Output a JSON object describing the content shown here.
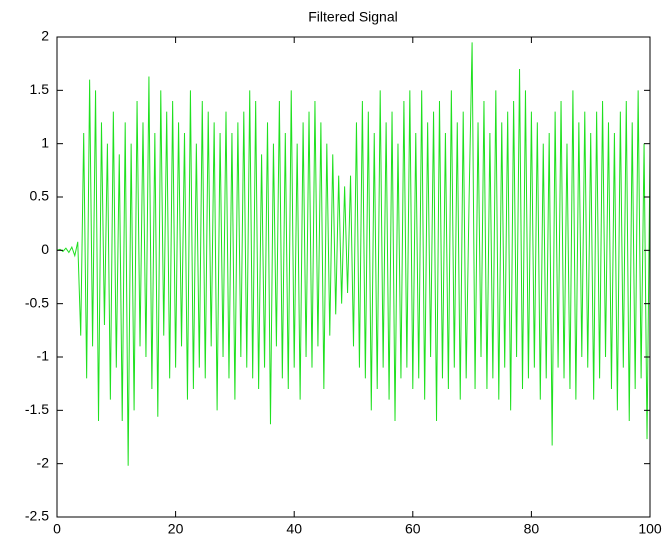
{
  "chart_data": {
    "type": "line",
    "title": "Filtered Signal",
    "color": "#1fe01f",
    "x": [
      0,
      0.5,
      1,
      1.5,
      2,
      2.5,
      3,
      3.5,
      4,
      4.5,
      5,
      5.5,
      6,
      6.5,
      7,
      7.5,
      8,
      8.5,
      9,
      9.5,
      10,
      10.5,
      11,
      11.5,
      12,
      12.5,
      13,
      13.5,
      14,
      14.5,
      15,
      15.5,
      16,
      16.5,
      17,
      17.5,
      18,
      18.5,
      19,
      19.5,
      20,
      20.5,
      21,
      21.5,
      22,
      22.5,
      23,
      23.5,
      24,
      24.5,
      25,
      25.5,
      26,
      26.5,
      27,
      27.5,
      28,
      28.5,
      29,
      29.5,
      30,
      30.5,
      31,
      31.5,
      32,
      32.5,
      33,
      33.5,
      34,
      34.5,
      35,
      35.5,
      36,
      36.5,
      37,
      37.5,
      38,
      38.5,
      39,
      39.5,
      40,
      40.5,
      41,
      41.5,
      42,
      42.5,
      43,
      43.5,
      44,
      44.5,
      45,
      45.5,
      46,
      46.5,
      47,
      47.5,
      48,
      48.5,
      49,
      49.5,
      50,
      50.5,
      51,
      51.5,
      52,
      52.5,
      53,
      53.5,
      54,
      54.5,
      55,
      55.5,
      56,
      56.5,
      57,
      57.5,
      58,
      58.5,
      59,
      59.5,
      60,
      60.5,
      61,
      61.5,
      62,
      62.5,
      63,
      63.5,
      64,
      64.5,
      65,
      65.5,
      66,
      66.5,
      67,
      67.5,
      68,
      68.5,
      69,
      69.5,
      70,
      70.5,
      71,
      71.5,
      72,
      72.5,
      73,
      73.5,
      74,
      74.5,
      75,
      75.5,
      76,
      76.5,
      77,
      77.5,
      78,
      78.5,
      79,
      79.5,
      80,
      80.5,
      81,
      81.5,
      82,
      82.5,
      83,
      83.5,
      84,
      84.5,
      85,
      85.5,
      86,
      86.5,
      87,
      87.5,
      88,
      88.5,
      89,
      89.5,
      90,
      90.5,
      91,
      91.5,
      92,
      92.5,
      93,
      93.5,
      94,
      94.5,
      95,
      95.5,
      96,
      96.5,
      97,
      97.5,
      98,
      98.5,
      99,
      99.5,
      100
    ],
    "values": [
      0,
      0.01,
      -0.01,
      0.02,
      -0.02,
      0.03,
      -0.05,
      0.08,
      -0.8,
      1.1,
      -1.2,
      1.6,
      -0.9,
      1.5,
      -1.6,
      1.2,
      -0.7,
      1.0,
      -1.4,
      1.3,
      -1.1,
      0.9,
      -1.6,
      1.2,
      -2.02,
      1.0,
      -1.5,
      1.4,
      -0.9,
      1.2,
      -1.0,
      1.63,
      -1.3,
      1.1,
      -1.56,
      1.5,
      -0.8,
      1.3,
      -1.2,
      1.4,
      -1.1,
      1.2,
      -0.9,
      1.1,
      -1.4,
      1.5,
      -1.3,
      1.0,
      -1.1,
      1.4,
      -1.2,
      1.3,
      -0.9,
      1.2,
      -1.5,
      1.1,
      -1.0,
      1.3,
      -1.2,
      1.1,
      -1.4,
      1.2,
      -1.0,
      1.3,
      -1.1,
      1.5,
      -1.2,
      1.4,
      -1.3,
      0.9,
      -1.1,
      1.2,
      -1.63,
      1.0,
      -0.9,
      1.4,
      -1.2,
      1.1,
      -1.3,
      1.5,
      -1.1,
      1.0,
      -1.4,
      1.2,
      -1.0,
      1.3,
      -1.1,
      1.4,
      -0.9,
      1.2,
      -1.3,
      1.0,
      -0.8,
      0.9,
      -0.6,
      0.7,
      -0.5,
      0.6,
      -0.4,
      0.7,
      -0.9,
      1.2,
      -1.1,
      1.4,
      -1.2,
      1.3,
      -1.5,
      1.1,
      -1.3,
      1.5,
      -1.1,
      1.2,
      -1.4,
      1.3,
      -1.6,
      1.0,
      -1.2,
      1.4,
      -1.1,
      1.5,
      -1.3,
      1.1,
      -1.2,
      1.5,
      -1.4,
      1.2,
      -1.0,
      1.3,
      -1.6,
      1.4,
      -1.2,
      1.1,
      -1.3,
      1.5,
      -1.1,
      1.2,
      -1.4,
      1.3,
      -1.2,
      0.5,
      1.95,
      -1.3,
      1.2,
      -1.0,
      1.4,
      -1.3,
      1.1,
      -1.2,
      1.5,
      -1.4,
      1.2,
      -1.1,
      1.3,
      -1.5,
      1.4,
      -1.0,
      1.7,
      -1.3,
      1.5,
      -1.2,
      1.3,
      -1.1,
      1.2,
      -1.4,
      1.0,
      -1.2,
      1.1,
      -1.83,
      1.3,
      -1.1,
      1.4,
      -1.2,
      1.0,
      -1.3,
      1.5,
      -1.4,
      1.2,
      -1.0,
      1.3,
      -1.1,
      1.1,
      -1.4,
      1.3,
      -1.2,
      1.4,
      -1.0,
      1.2,
      -1.3,
      1.1,
      -1.5,
      1.3,
      -1.1,
      1.4,
      -1.6,
      1.2,
      -1.3,
      1.5,
      -1.2,
      1.0,
      -1.77,
      0.9
    ],
    "xlim": [
      0,
      100
    ],
    "xticks": [
      0,
      20,
      40,
      60,
      80,
      100
    ],
    "ylim": [
      -2.5,
      2
    ],
    "yticks": [
      -2.5,
      -2,
      -1.5,
      -1,
      -0.5,
      0,
      0.5,
      1,
      1.5,
      2
    ]
  }
}
